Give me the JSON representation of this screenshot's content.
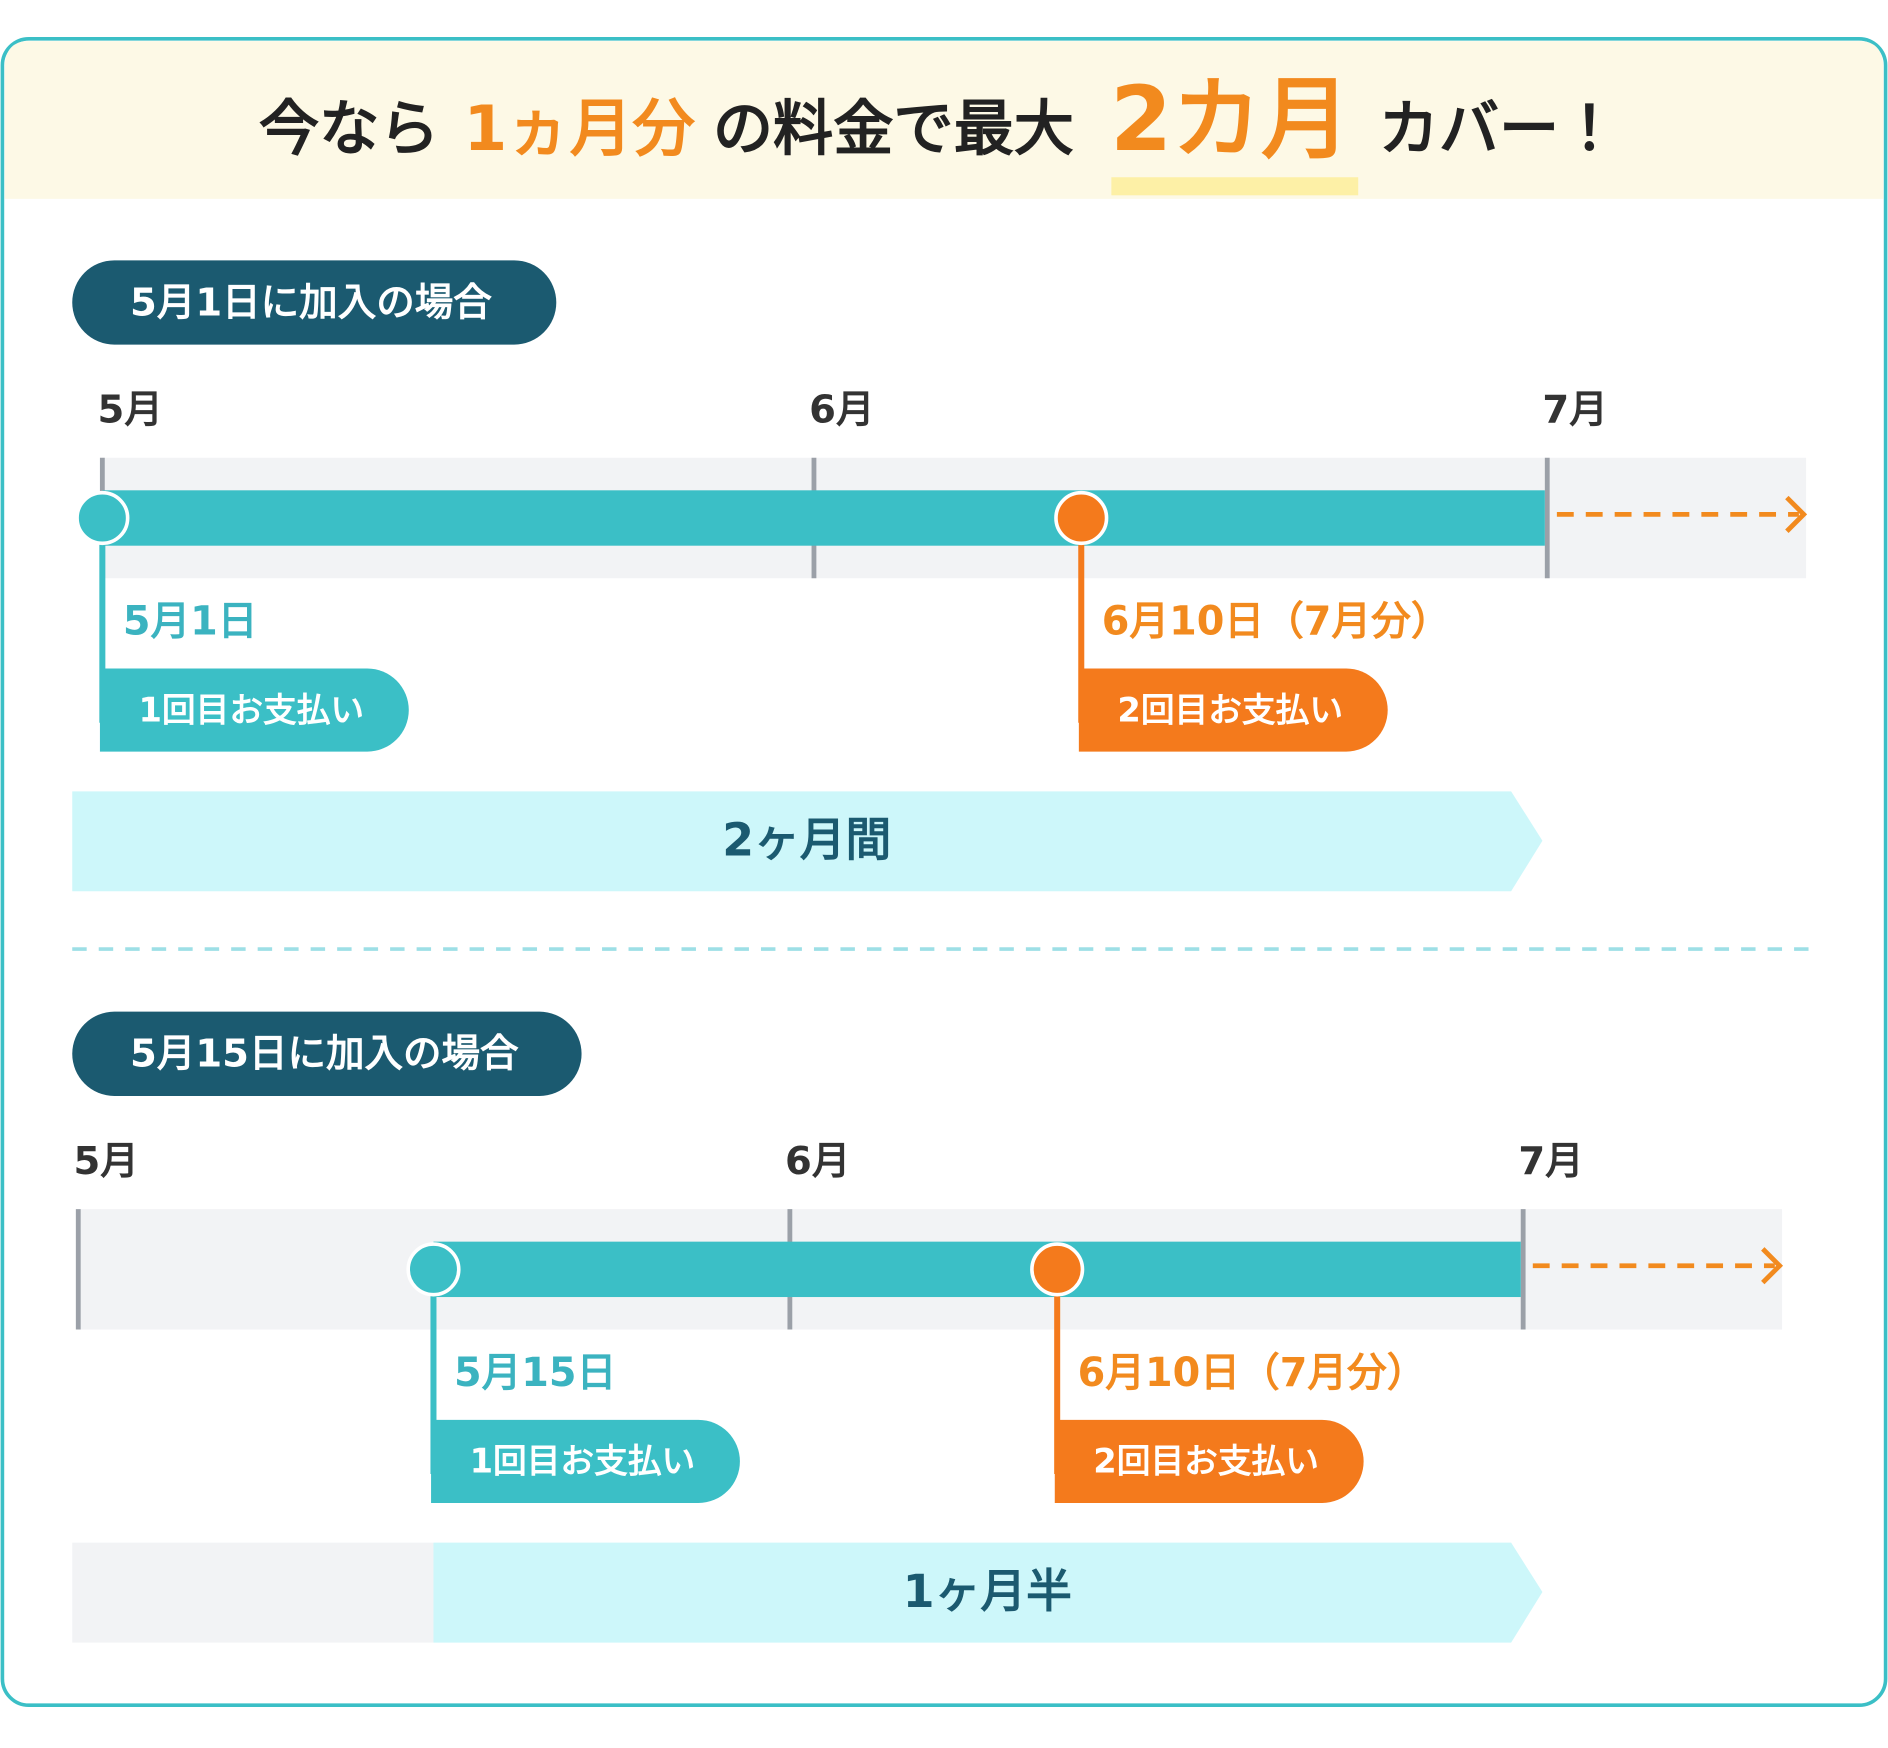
{
  "header": {
    "title_parts": [
      "今なら",
      "1ヵ月分",
      "の料金で最大",
      "2カ月",
      "カバー！"
    ]
  },
  "sections": [
    {
      "label": "5月1日に加入の場合",
      "months": [
        "5月",
        "6月",
        "7月"
      ],
      "payments": [
        {
          "date": "5月1日",
          "label": "1回目お支払い"
        },
        {
          "date": "6月10日（7月分）",
          "label": "2回目お支払い"
        }
      ],
      "duration": "2ヶ月間"
    },
    {
      "label": "5月15日に加入の場合",
      "months": [
        "5月",
        "6月",
        "7月"
      ],
      "payments": [
        {
          "date": "5月15日",
          "label": "1回目お支払い"
        },
        {
          "date": "6月10日（7月分）",
          "label": "2回目お支払い"
        }
      ],
      "duration": "1ヶ月半"
    }
  ]
}
